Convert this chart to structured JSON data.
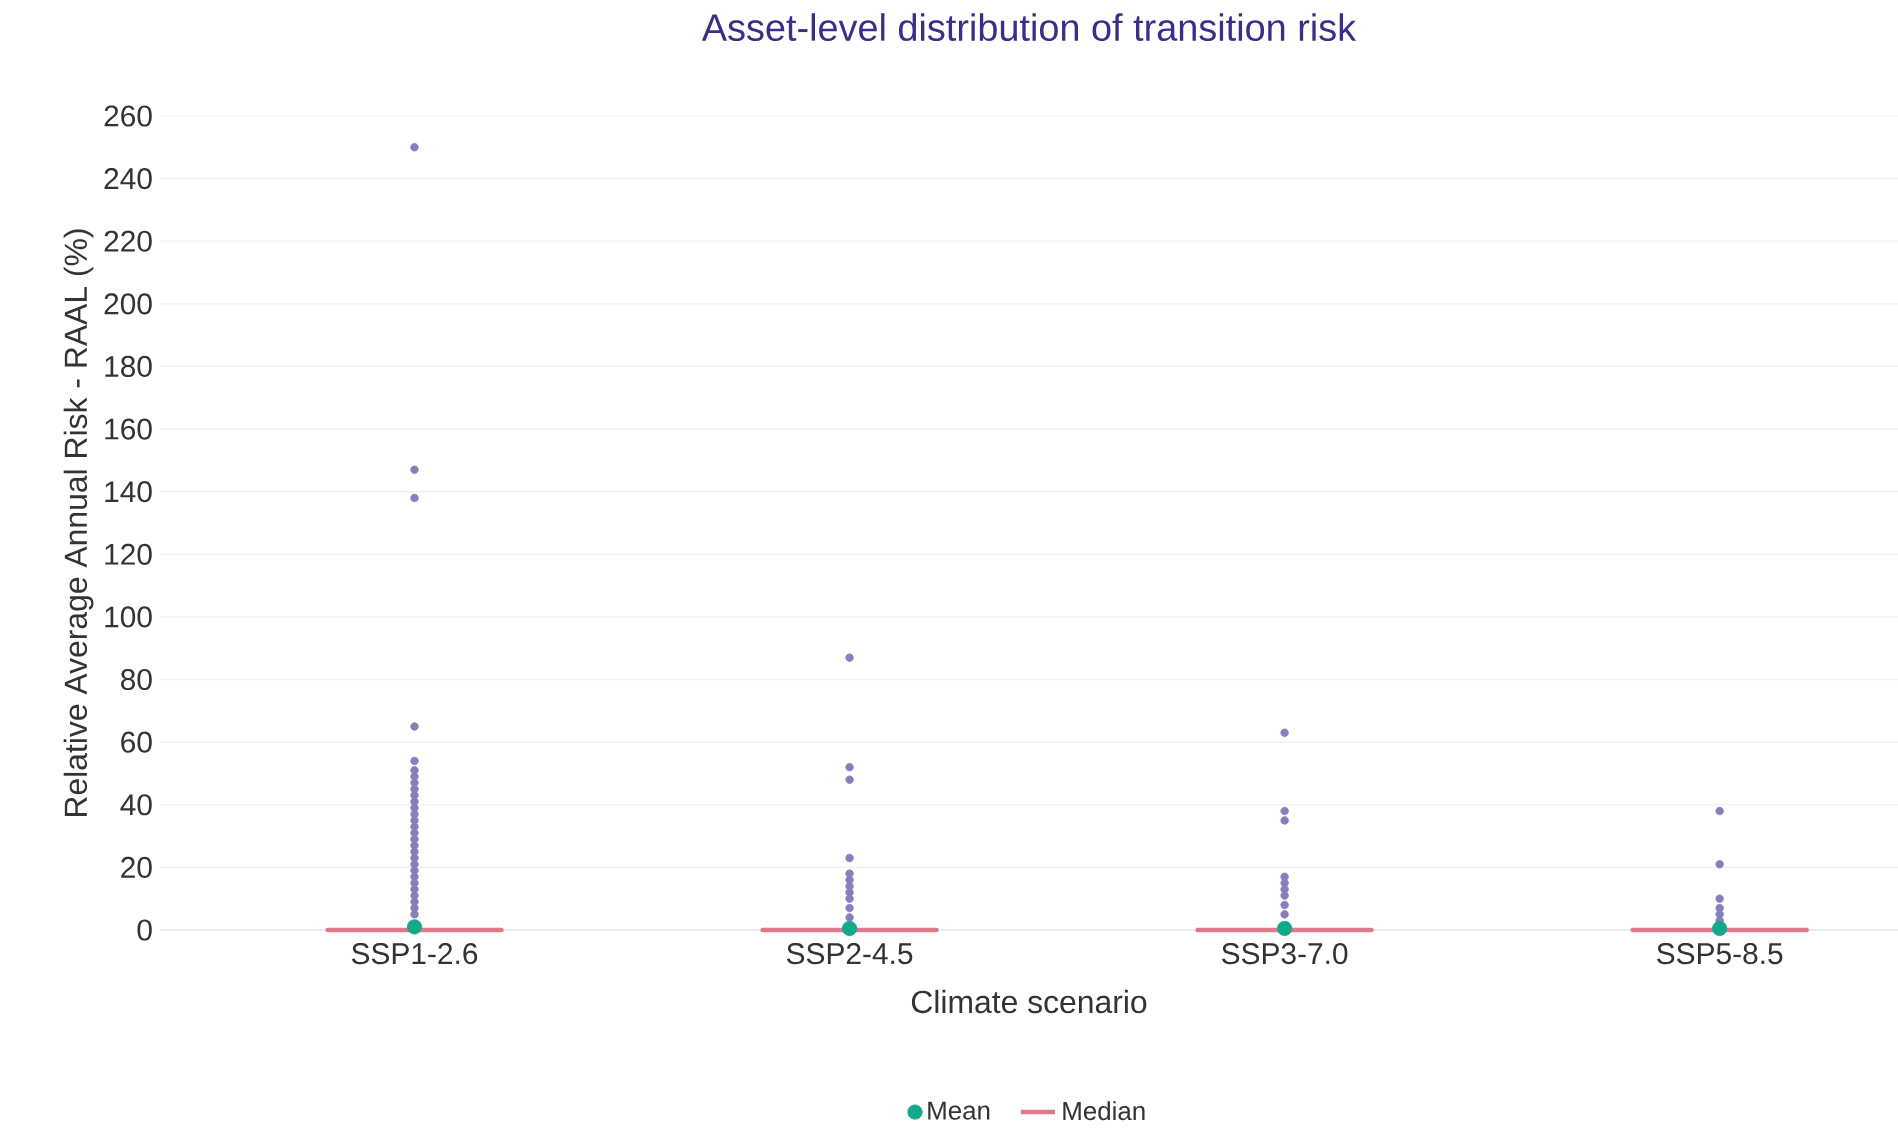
{
  "chart_data": {
    "type": "box",
    "title": "Asset-level distribution of transition risk",
    "xlabel": "Climate scenario",
    "ylabel": "Relative Average Annual Risk - RAAL (%)",
    "categories": [
      "SSP1-2.6",
      "SSP2-4.5",
      "SSP3-7.0",
      "SSP5-8.5"
    ],
    "series": [
      {
        "type": "scatter",
        "color": "#8a7dbb",
        "x": [
          "SSP1-2.6",
          "SSP1-2.6",
          "SSP1-2.6",
          "SSP1-2.6",
          "SSP1-2.6",
          "SSP1-2.6",
          "SSP1-2.6",
          "SSP1-2.6",
          "SSP1-2.6",
          "SSP1-2.6",
          "SSP1-2.6",
          "SSP1-2.6",
          "SSP1-2.6",
          "SSP1-2.6",
          "SSP1-2.6",
          "SSP1-2.6",
          "SSP1-2.6",
          "SSP1-2.6",
          "SSP1-2.6",
          "SSP1-2.6",
          "SSP1-2.6",
          "SSP1-2.6",
          "SSP1-2.6",
          "SSP1-2.6",
          "SSP1-2.6",
          "SSP1-2.6",
          "SSP1-2.6",
          "SSP1-2.6",
          "SSP1-2.6",
          "SSP2-4.5",
          "SSP2-4.5",
          "SSP2-4.5",
          "SSP2-4.5",
          "SSP2-4.5",
          "SSP2-4.5",
          "SSP2-4.5",
          "SSP2-4.5",
          "SSP2-4.5",
          "SSP2-4.5",
          "SSP2-4.5",
          "SSP3-7.0",
          "SSP3-7.0",
          "SSP3-7.0",
          "SSP3-7.0",
          "SSP3-7.0",
          "SSP3-7.0",
          "SSP3-7.0",
          "SSP3-7.0",
          "SSP3-7.0",
          "SSP5-8.5",
          "SSP5-8.5",
          "SSP5-8.5",
          "SSP5-8.5",
          "SSP5-8.5",
          "SSP5-8.5"
        ],
        "values": [
          250,
          147,
          138,
          65,
          54,
          51,
          49,
          47,
          45,
          43,
          41,
          39,
          37,
          35,
          33,
          31,
          29,
          27,
          25,
          23,
          21,
          19,
          17,
          15,
          13,
          11,
          9,
          7,
          5,
          87,
          52,
          48,
          23,
          18,
          16,
          14,
          12,
          10,
          7,
          4,
          63,
          38,
          35,
          17,
          15,
          13,
          11,
          8,
          5,
          38,
          21,
          10,
          7,
          5,
          3
        ]
      },
      {
        "type": "scatter",
        "name": "Mean",
        "color": "#13a88a",
        "values": [
          1,
          0.5,
          0.5,
          0.5
        ]
      },
      {
        "name": "Median",
        "color": "#e07a8a",
        "boxes": [
          {
            "low": 0,
            "q1": 0,
            "median": 0,
            "q3": 0,
            "high": 0
          },
          {
            "low": 0,
            "q1": 0,
            "median": 0,
            "q3": 0,
            "high": 0
          },
          {
            "low": 0,
            "q1": 0,
            "median": 0,
            "q3": 0,
            "high": 0
          },
          {
            "low": 0,
            "q1": 0,
            "median": 0,
            "q3": 0,
            "high": 0
          }
        ]
      }
    ],
    "ylim": [
      0,
      260
    ],
    "yticks": [
      0,
      20,
      40,
      60,
      80,
      100,
      120,
      140,
      160,
      180,
      200,
      220,
      240,
      260
    ],
    "grid": "y",
    "legend": "bottom"
  }
}
